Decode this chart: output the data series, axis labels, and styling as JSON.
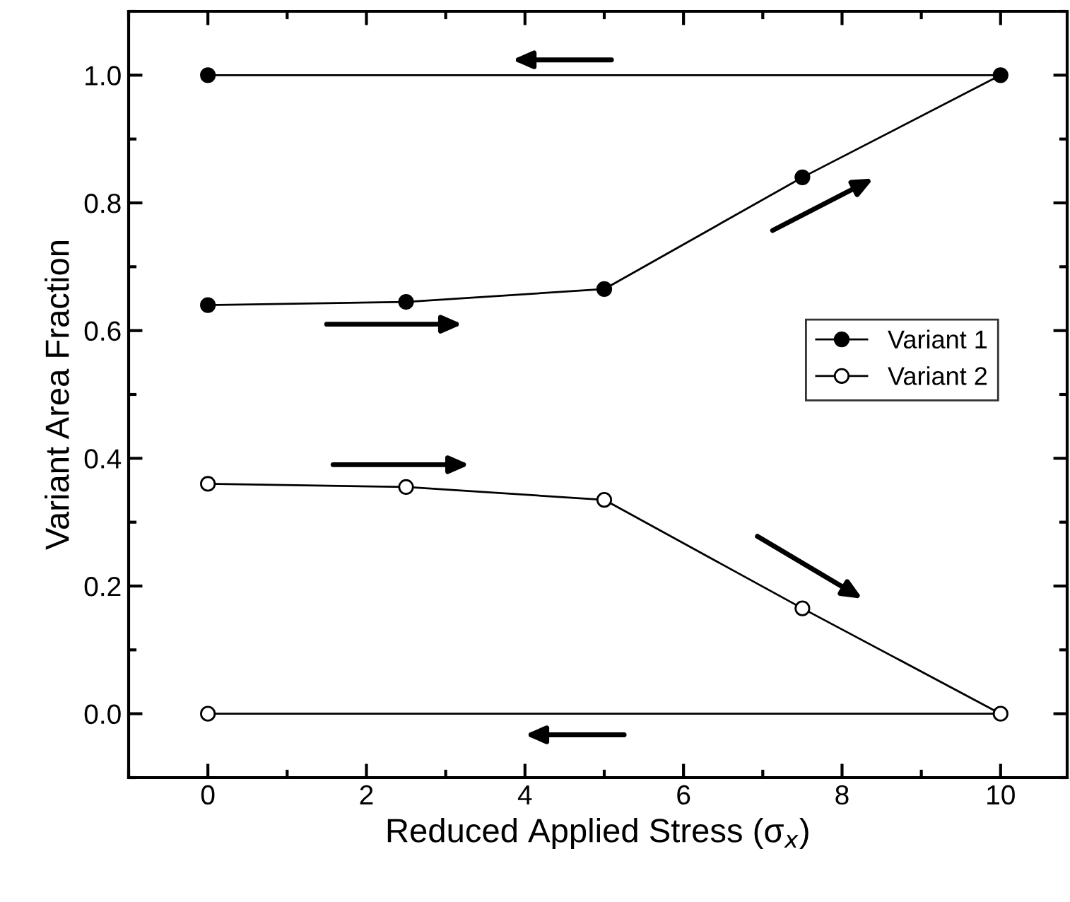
{
  "chart_data": {
    "type": "line",
    "xlabel": "Reduced Applied Stress (σ$_{x}$)",
    "ylabel": "Variant Area Fraction",
    "series": [
      {
        "name": "Variant 1",
        "color": "#000000",
        "x": [
          0,
          2.5,
          5,
          7.5,
          10,
          0
        ],
        "values": [
          0.64,
          0.645,
          0.665,
          0.84,
          1.0,
          1.0
        ]
      },
      {
        "name": "Variant 2",
        "color": "#000000",
        "x": [
          0,
          2.5,
          5,
          7.5,
          10,
          0
        ],
        "values": [
          0.36,
          0.355,
          0.335,
          0.165,
          0.0,
          0.0
        ]
      }
    ],
    "xlim": [
      -1,
      10.84
    ],
    "xticks": [
      0,
      2,
      4,
      6,
      8,
      10
    ],
    "ylim": [
      -0.1,
      1.1
    ],
    "yticks": [
      {
        "value": 0,
        "label": "0.0"
      },
      0.2,
      0.4,
      0.6,
      0.8,
      {
        "value": 1,
        "label": "1.0"
      }
    ],
    "marker": "circle",
    "line_style": "solid",
    "legend": "right",
    "grid": false
  }
}
